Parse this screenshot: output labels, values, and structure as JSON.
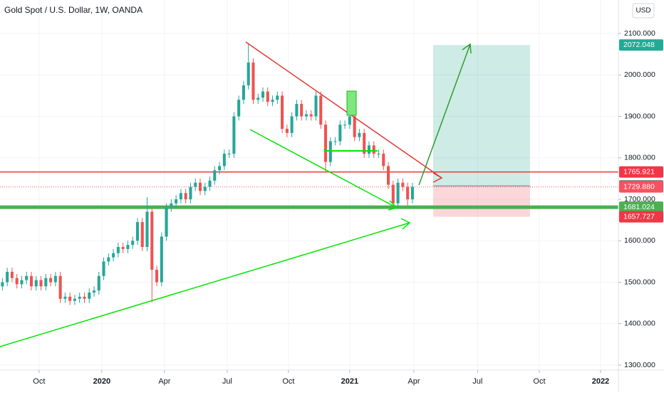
{
  "chart_data": {
    "type": "candlestick",
    "title": "Gold Spot / U.S. Dollar, 1W, OANDA",
    "currency": "USD",
    "up_color": "#26a69a",
    "down_color": "#ef5350",
    "grid": true,
    "xlim": [
      -0.5,
      127.7
    ],
    "ylim": [
      1288,
      2180.7
    ],
    "xticks": [
      {
        "value": 7.6,
        "label": "Oct"
      },
      {
        "value": 20.6,
        "label": "2020"
      },
      {
        "value": 33.6,
        "label": "Apr"
      },
      {
        "value": 46.6,
        "label": "Jul"
      },
      {
        "value": 59.3,
        "label": "Oct"
      },
      {
        "value": 72.0,
        "label": "2021"
      },
      {
        "value": 85.3,
        "label": "Apr"
      },
      {
        "value": 98.5,
        "label": "Jul"
      },
      {
        "value": 111.3,
        "label": "Oct"
      },
      {
        "value": 124.0,
        "label": "2022"
      }
    ],
    "yticks": [
      {
        "value": 1300,
        "label": "1300.000"
      },
      {
        "value": 1400,
        "label": "1400.000"
      },
      {
        "value": 1500,
        "label": "1500.000"
      },
      {
        "value": 1600,
        "label": "1600.000"
      },
      {
        "value": 1700,
        "label": "1700.000"
      },
      {
        "value": 1800,
        "label": "1800.000"
      },
      {
        "value": 1900,
        "label": "1900.000"
      },
      {
        "value": 2000,
        "label": "2000.000"
      },
      {
        "value": 2100,
        "label": "2100.000"
      }
    ],
    "open": [
      1490,
      1500,
      1525,
      1510,
      1495,
      1505,
      1515,
      1490,
      1505,
      1490,
      1510,
      1500,
      1515,
      1460,
      1465,
      1455,
      1460,
      1465,
      1460,
      1475,
      1480,
      1515,
      1550,
      1560,
      1570,
      1585,
      1580,
      1590,
      1600,
      1645,
      1585,
      1670,
      1530,
      1500,
      1610,
      1680,
      1690,
      1700,
      1715,
      1700,
      1730,
      1740,
      1720,
      1730,
      1745,
      1770,
      1780,
      1810,
      1810,
      1900,
      1940,
      1975,
      2030,
      1940,
      1945,
      1960,
      1935,
      1940,
      1950,
      1870,
      1860,
      1900,
      1930,
      1900,
      1905,
      1900,
      1950,
      1880,
      1790,
      1840,
      1840,
      1880,
      1880,
      1900,
      1850,
      1860,
      1810,
      1830,
      1810,
      1810,
      1780,
      1735,
      1690,
      1740,
      1730,
      1700
    ],
    "high": [
      1510,
      1535,
      1535,
      1520,
      1515,
      1525,
      1525,
      1515,
      1515,
      1520,
      1520,
      1525,
      1525,
      1475,
      1475,
      1470,
      1475,
      1475,
      1485,
      1490,
      1525,
      1560,
      1570,
      1580,
      1595,
      1595,
      1600,
      1610,
      1655,
      1655,
      1705,
      1680,
      1540,
      1620,
      1690,
      1700,
      1710,
      1725,
      1725,
      1740,
      1750,
      1750,
      1740,
      1755,
      1780,
      1790,
      1820,
      1820,
      1910,
      1950,
      1985,
      2075,
      2040,
      1955,
      1970,
      1970,
      1950,
      1960,
      1960,
      1880,
      1910,
      1940,
      1940,
      1915,
      1915,
      1960,
      1960,
      1890,
      1850,
      1850,
      1890,
      1890,
      1910,
      1910,
      1870,
      1870,
      1840,
      1840,
      1820,
      1820,
      1790,
      1745,
      1750,
      1750,
      1740,
      1740
    ],
    "low": [
      1480,
      1490,
      1500,
      1485,
      1485,
      1495,
      1480,
      1480,
      1480,
      1480,
      1490,
      1490,
      1450,
      1450,
      1445,
      1445,
      1450,
      1450,
      1450,
      1465,
      1470,
      1505,
      1540,
      1550,
      1560,
      1570,
      1570,
      1580,
      1590,
      1575,
      1575,
      1451,
      1490,
      1490,
      1600,
      1670,
      1680,
      1690,
      1690,
      1690,
      1720,
      1710,
      1710,
      1720,
      1735,
      1760,
      1770,
      1800,
      1800,
      1890,
      1930,
      1965,
      1930,
      1930,
      1935,
      1925,
      1925,
      1930,
      1860,
      1850,
      1850,
      1890,
      1890,
      1890,
      1890,
      1890,
      1870,
      1765,
      1780,
      1830,
      1830,
      1870,
      1870,
      1840,
      1840,
      1800,
      1800,
      1800,
      1800,
      1770,
      1725,
      1677,
      1680,
      1720,
      1685,
      1690
    ],
    "close": [
      1500,
      1525,
      1510,
      1495,
      1505,
      1515,
      1490,
      1505,
      1490,
      1510,
      1500,
      1515,
      1460,
      1465,
      1455,
      1460,
      1465,
      1460,
      1475,
      1480,
      1515,
      1550,
      1560,
      1570,
      1585,
      1580,
      1590,
      1600,
      1645,
      1585,
      1670,
      1530,
      1500,
      1610,
      1680,
      1690,
      1700,
      1715,
      1700,
      1730,
      1740,
      1720,
      1730,
      1745,
      1770,
      1780,
      1810,
      1810,
      1900,
      1940,
      1975,
      2030,
      1940,
      1945,
      1960,
      1935,
      1940,
      1950,
      1870,
      1860,
      1900,
      1930,
      1900,
      1905,
      1900,
      1950,
      1880,
      1790,
      1840,
      1840,
      1880,
      1880,
      1900,
      1850,
      1860,
      1810,
      1830,
      1810,
      1810,
      1780,
      1735,
      1690,
      1740,
      1730,
      1700,
      1730
    ],
    "price_labels": [
      {
        "value": 2072.048,
        "color": "#22ab94"
      },
      {
        "value": 1765.921,
        "color": "#f23645"
      },
      {
        "value": 1732.492,
        "color": "#787b86"
      },
      {
        "value": 1729.88,
        "label": "1729.880",
        "color": "#f7525f"
      },
      {
        "value": 1681.024,
        "color": "#4caf50"
      },
      {
        "value": 1657.727,
        "color": "#f23645"
      }
    ]
  }
}
